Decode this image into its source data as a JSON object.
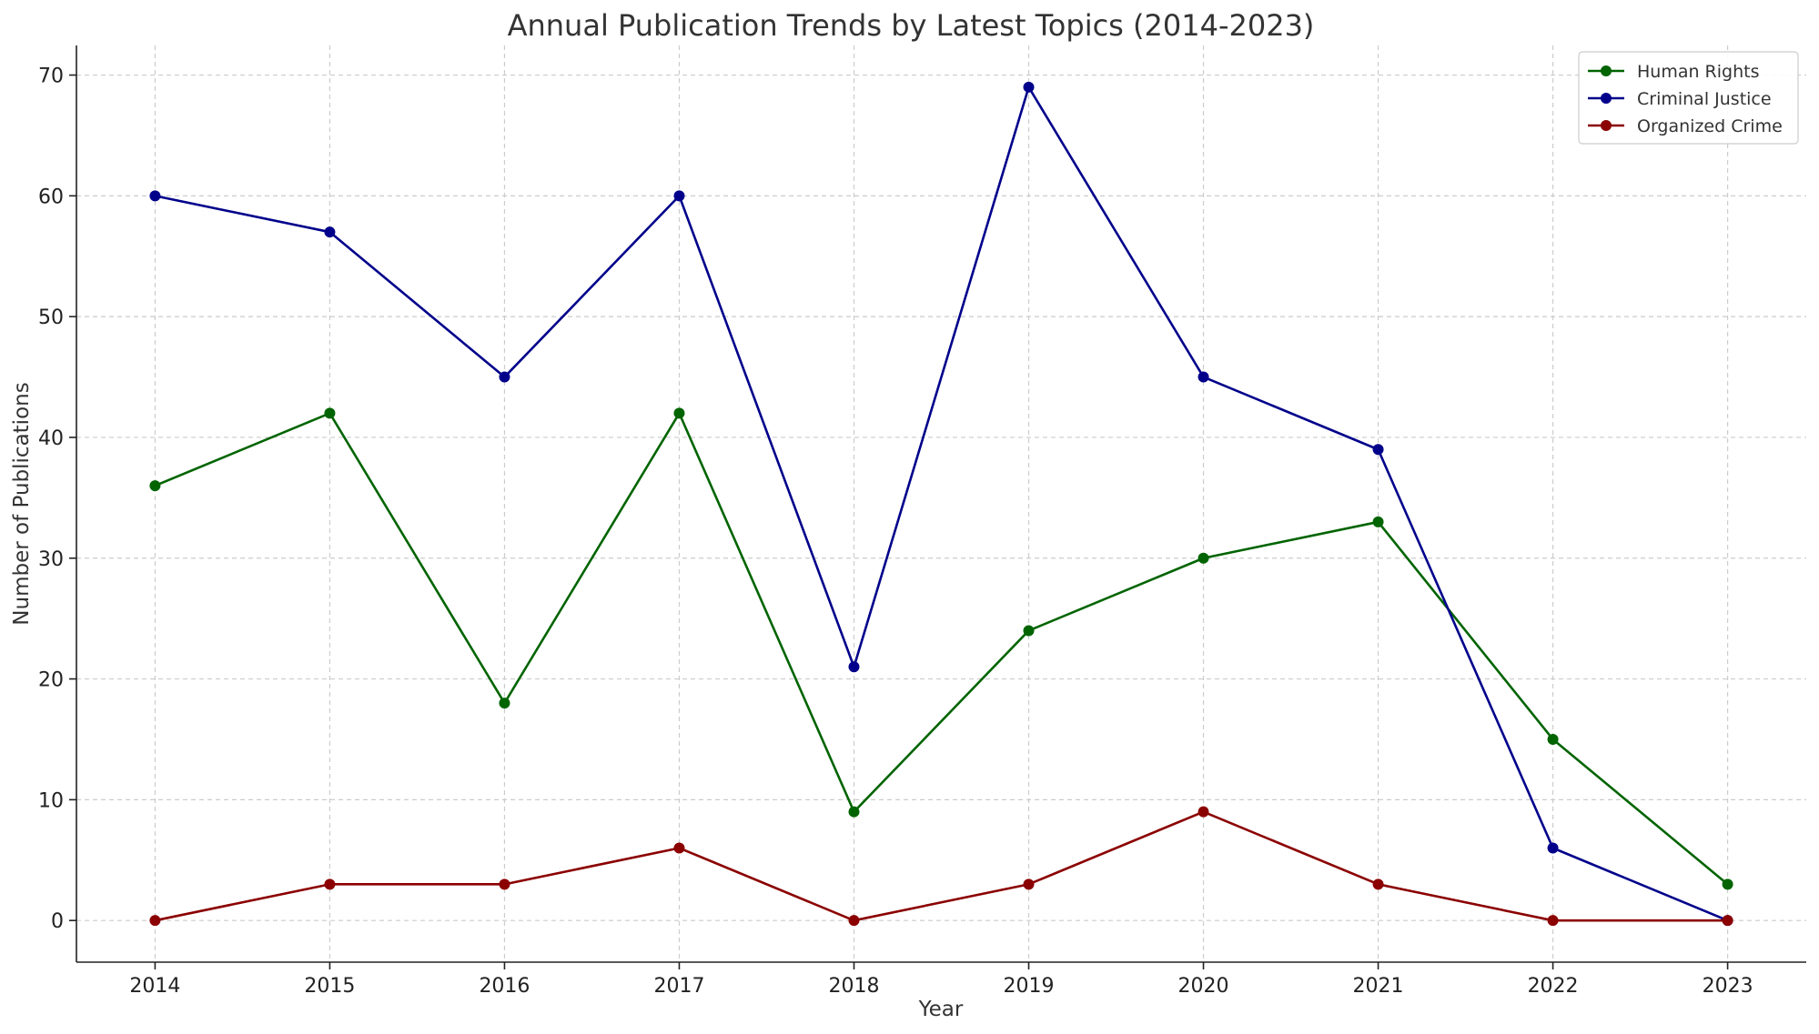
{
  "chart_data": {
    "type": "line",
    "title": "Annual Publication Trends by Latest Topics (2014-2023)",
    "xlabel": "Year",
    "ylabel": "Number of Publications",
    "x": [
      2014,
      2015,
      2016,
      2017,
      2018,
      2019,
      2020,
      2021,
      2022,
      2023
    ],
    "x_tick_labels": [
      "2014",
      "2015",
      "2016",
      "2017",
      "2018",
      "2019",
      "2020",
      "2021",
      "2022",
      "2023"
    ],
    "y_ticks": [
      0,
      10,
      20,
      30,
      40,
      50,
      60,
      70
    ],
    "y_tick_labels": [
      "0",
      "10",
      "20",
      "30",
      "40",
      "50",
      "60",
      "70"
    ],
    "xlim": [
      2013.55,
      2023.45
    ],
    "ylim": [
      -3.45,
      72.45
    ],
    "grid": true,
    "legend_position": "top-right",
    "series": [
      {
        "name": "Human Rights",
        "color": "#006400",
        "values": [
          36,
          42,
          18,
          42,
          9,
          24,
          30,
          33,
          15,
          3
        ]
      },
      {
        "name": "Criminal Justice",
        "color": "#00008b",
        "values": [
          60,
          57,
          45,
          60,
          21,
          69,
          45,
          39,
          6,
          0
        ]
      },
      {
        "name": "Organized Crime",
        "color": "#8b0000",
        "values": [
          0,
          3,
          3,
          6,
          0,
          3,
          9,
          3,
          0,
          0
        ]
      }
    ]
  }
}
